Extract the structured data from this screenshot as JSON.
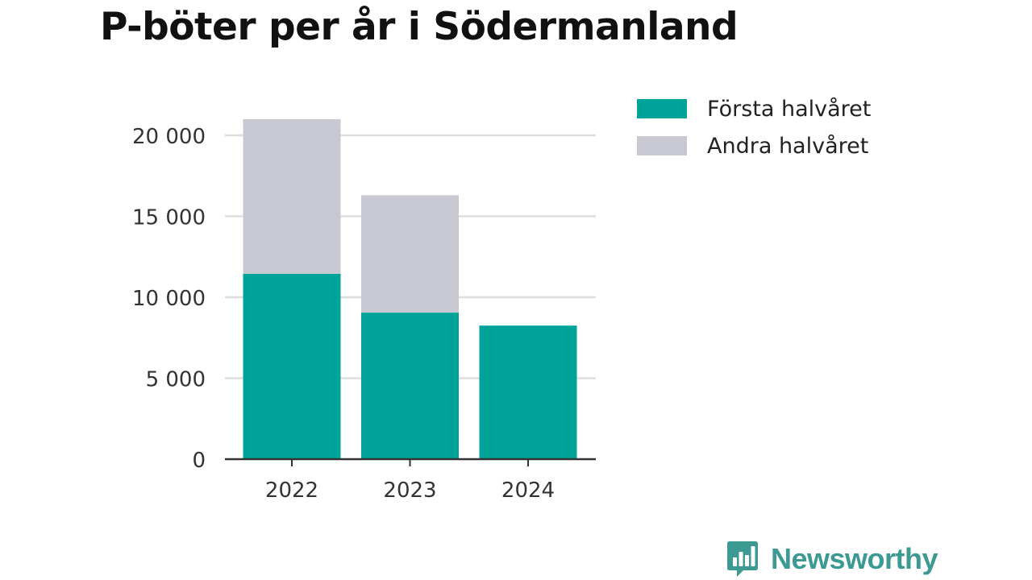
{
  "title": "P-böter per år i Södermanland",
  "brand": {
    "name": "Newsworthy",
    "icon": "bar-chart-speech-bubble-icon",
    "color": "#3c9a92"
  },
  "colors": {
    "first_half": "#00a398",
    "second_half": "#c8c8d2",
    "grid": "#dddddd",
    "axis": "#333333"
  },
  "legend": {
    "position": "top-right",
    "items": [
      {
        "label": "Första halvåret",
        "color": "#00a398"
      },
      {
        "label": "Andra halvåret",
        "color": "#c8c8d2"
      }
    ]
  },
  "chart_data": {
    "type": "bar",
    "stacked": true,
    "title": "P-böter per år i Södermanland",
    "xlabel": "",
    "ylabel": "",
    "categories": [
      "2022",
      "2023",
      "2024"
    ],
    "series": [
      {
        "name": "Första halvåret",
        "values": [
          11450,
          9050,
          8250
        ]
      },
      {
        "name": "Andra halvåret",
        "values": [
          9550,
          7250,
          0
        ]
      }
    ],
    "ylim": [
      0,
      21000
    ],
    "yticks": [
      0,
      5000,
      10000,
      15000,
      20000
    ],
    "ytick_labels": [
      "0",
      "5 000",
      "10 000",
      "15 000",
      "20 000"
    ],
    "grid": true
  }
}
